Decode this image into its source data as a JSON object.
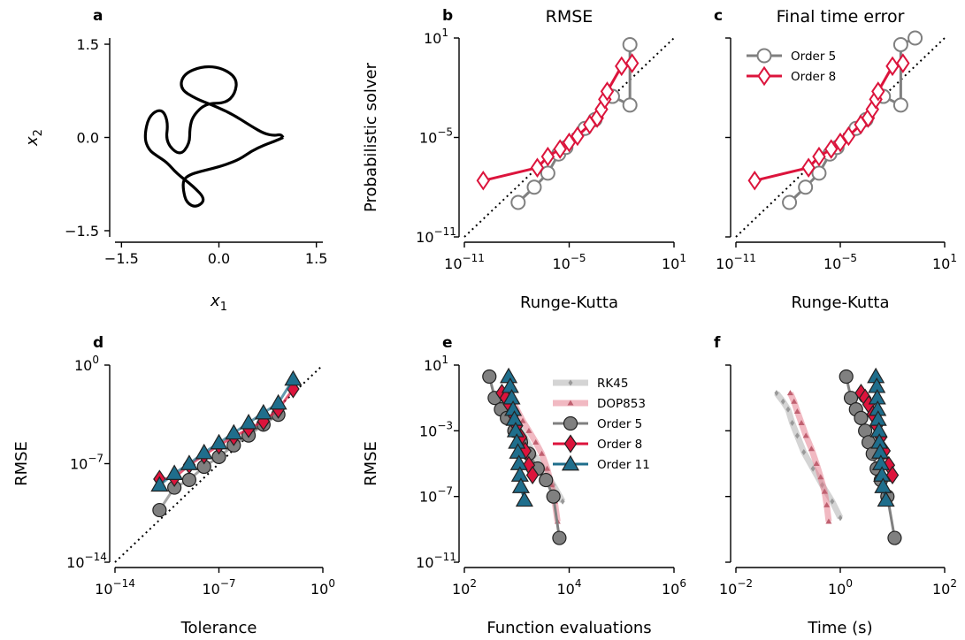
{
  "colors": {
    "order5": "#808080",
    "order8": "#dc143c",
    "order11": "#1f6e8c",
    "rk45": "#b0b0b0",
    "dop853": "#e6808f",
    "curve": "#000000"
  },
  "chart_data": [
    {
      "panel": "a",
      "type": "line",
      "title": "",
      "xlabel": "x1",
      "ylabel": "x2",
      "xlim": [
        -1.6,
        1.6
      ],
      "ylim": [
        -1.6,
        1.6
      ],
      "xticks": [
        "−1.5",
        "0.0",
        "1.5"
      ],
      "yticks": [
        "−1.5",
        "0.0",
        "1.5"
      ],
      "series": [
        {
          "name": "",
          "kind": "three-body orbit",
          "points": [
            [
              0.99,
              0
            ],
            [
              0.86,
              -0.06
            ],
            [
              0.7,
              -0.12
            ],
            [
              0.5,
              -0.22
            ],
            [
              0.32,
              -0.35
            ],
            [
              0.1,
              -0.44
            ],
            [
              -0.1,
              -0.5
            ],
            [
              -0.3,
              -0.55
            ],
            [
              -0.45,
              -0.6
            ],
            [
              -0.55,
              -0.68
            ],
            [
              -0.55,
              -0.85
            ],
            [
              -0.5,
              -1.05
            ],
            [
              -0.35,
              -1.13
            ],
            [
              -0.2,
              -1.0
            ],
            [
              -0.4,
              -0.78
            ],
            [
              -0.65,
              -0.58
            ],
            [
              -0.8,
              -0.4
            ],
            [
              -0.95,
              -0.3
            ],
            [
              -1.08,
              -0.2
            ],
            [
              -1.15,
              0
            ],
            [
              -1.08,
              0.35
            ],
            [
              -0.88,
              0.47
            ],
            [
              -0.78,
              0.25
            ],
            [
              -0.82,
              -0.08
            ],
            [
              -0.6,
              -0.3
            ],
            [
              -0.45,
              -0.1
            ],
            [
              -0.45,
              0.15
            ],
            [
              -0.4,
              0.35
            ],
            [
              -0.2,
              0.55
            ],
            [
              0.1,
              0.55
            ],
            [
              0.25,
              0.7
            ],
            [
              0.28,
              0.95
            ],
            [
              0.05,
              1.12
            ],
            [
              -0.25,
              1.15
            ],
            [
              -0.55,
              1.02
            ],
            [
              -0.6,
              0.78
            ],
            [
              -0.35,
              0.62
            ],
            [
              -0.1,
              0.52
            ],
            [
              0.2,
              0.38
            ],
            [
              0.5,
              0.18
            ],
            [
              0.7,
              0.06
            ],
            [
              0.85,
              0.03
            ],
            [
              0.95,
              0.05
            ],
            [
              0.99,
              0
            ]
          ]
        }
      ]
    },
    {
      "panel": "b",
      "type": "scatter",
      "title": "RMSE",
      "xlabel": "Runge-Kutta",
      "ylabel": "Probabilistic solver",
      "xscale": "log",
      "yscale": "log",
      "xlim_exp": [
        -11,
        1
      ],
      "ylim_exp": [
        -11,
        1
      ],
      "xticks": [
        "-11",
        "-5",
        "1"
      ],
      "yticks": [
        "-11",
        "-5",
        "1"
      ],
      "diagonal": true,
      "legend": "none",
      "series": [
        {
          "name": "Order 5",
          "marker": "circle",
          "x": [
            1.2e-08,
            1e-07,
            6e-07,
            2.5e-06,
            6.5e-06,
            8e-05,
            0.0003,
            0.003,
            0.03,
            0.03
          ],
          "y": [
            1.2e-09,
            1e-08,
            7e-08,
            1e-06,
            2.5e-06,
            3.5e-05,
            0.00012,
            0.003,
            0.0009,
            4.0
          ]
        },
        {
          "name": "Order 8",
          "marker": "diamond",
          "x": [
            1.2e-10,
            1.5e-07,
            6e-07,
            3e-06,
            1e-05,
            3e-05,
            0.00015,
            0.0004,
            0.0007,
            0.0011,
            0.0015,
            0.01,
            0.04
          ],
          "y": [
            2.5e-08,
            1.5e-07,
            7e-07,
            2e-06,
            5e-06,
            1.2e-05,
            6e-05,
            0.00015,
            0.0005,
            0.002,
            0.006,
            0.2,
            0.3
          ]
        }
      ]
    },
    {
      "panel": "c",
      "type": "scatter",
      "title": "Final time error",
      "xlabel": "Runge-Kutta",
      "ylabel": "",
      "xscale": "log",
      "yscale": "log",
      "xlim_exp": [
        -11,
        1
      ],
      "ylim_exp": [
        -11,
        1
      ],
      "xticks": [
        "-11",
        "-5",
        "1"
      ],
      "yticks": [],
      "diagonal": true,
      "legend": "top-left",
      "series": [
        {
          "name": "Order 5",
          "marker": "circle",
          "x": [
            1.2e-08,
            1e-07,
            6e-07,
            2.5e-06,
            6.5e-06,
            8e-05,
            0.0003,
            0.003,
            0.03,
            0.03,
            0.2
          ],
          "y": [
            1.2e-09,
            1e-08,
            7e-08,
            1e-06,
            2.5e-06,
            3.5e-05,
            0.00012,
            0.003,
            0.0009,
            4.0,
            10.0
          ]
        },
        {
          "name": "Order 8",
          "marker": "diamond",
          "x": [
            1.2e-10,
            1.5e-07,
            6e-07,
            3e-06,
            1e-05,
            3e-05,
            0.00015,
            0.0004,
            0.0007,
            0.0011,
            0.0015,
            0.01,
            0.04
          ],
          "y": [
            2.5e-08,
            1.5e-07,
            7e-07,
            2e-06,
            5e-06,
            1.2e-05,
            6e-05,
            0.00015,
            0.0005,
            0.002,
            0.006,
            0.2,
            0.3
          ]
        }
      ]
    },
    {
      "panel": "d",
      "type": "line",
      "title": "",
      "xlabel": "Tolerance",
      "ylabel": "RMSE",
      "xscale": "log",
      "yscale": "log",
      "xlim_exp": [
        -14,
        0
      ],
      "ylim_exp": [
        -14,
        0
      ],
      "xticks": [
        "-14",
        "-7",
        "0"
      ],
      "yticks": [
        "-14",
        "-7",
        "0"
      ],
      "diagonal": true,
      "legend": "none",
      "series": [
        {
          "name": "Order 5",
          "marker": "circle",
          "x": [
            1e-11,
            1e-10,
            1e-09,
            1e-08,
            1e-07,
            1e-06,
            1e-05,
            0.0001,
            0.001
          ],
          "y": [
            5e-11,
            2e-09,
            7e-09,
            6e-08,
            3e-07,
            2e-06,
            1e-05,
            6e-05,
            0.0003
          ]
        },
        {
          "name": "Order 8",
          "marker": "diamond",
          "x": [
            1e-11,
            1e-10,
            1e-09,
            1e-08,
            1e-07,
            1e-06,
            1e-05,
            0.0001,
            0.001,
            0.01
          ],
          "y": [
            8e-09,
            1e-08,
            8e-08,
            4e-07,
            2e-06,
            8e-06,
            3e-05,
            0.0001,
            0.0007,
            0.02
          ]
        },
        {
          "name": "Order 11",
          "marker": "triangle",
          "x": [
            1e-11,
            1e-10,
            1e-09,
            1e-08,
            1e-07,
            1e-06,
            1e-05,
            0.0001,
            0.001,
            0.01
          ],
          "y": [
            3e-09,
            2e-08,
            1e-07,
            6e-07,
            3e-06,
            1.5e-05,
            8e-05,
            0.0004,
            0.002,
            0.1
          ]
        }
      ]
    },
    {
      "panel": "e",
      "type": "line",
      "title": "",
      "xlabel": "Function evaluations",
      "ylabel": "RMSE",
      "xscale": "log",
      "yscale": "log",
      "xlim_exp": [
        2,
        6
      ],
      "ylim_exp": [
        -11,
        1
      ],
      "xticks": [
        "2",
        "4",
        "6"
      ],
      "yticks": [
        "-11",
        "-7",
        "-3",
        "1"
      ],
      "diagonal": false,
      "legend": "top-right",
      "series": [
        {
          "name": "RK45",
          "marker": "small-diamond",
          "x": [
            450,
            600,
            800,
            1100,
            1500,
            2200,
            3200,
            5000,
            7500
          ],
          "y": [
            0.2,
            0.06,
            0.02,
            0.002,
            0.0003,
            3e-05,
            5e-06,
            5e-07,
            5e-08
          ]
        },
        {
          "name": "DOP853",
          "marker": "small-triangle",
          "x": [
            700,
            850,
            1000,
            1300,
            1700,
            2300,
            3000,
            3800,
            4600,
            5300,
            6000
          ],
          "y": [
            0.2,
            0.06,
            0.02,
            0.004,
            0.001,
            0.0002,
            4e-05,
            5e-06,
            5e-07,
            5e-08,
            3e-09
          ]
        },
        {
          "name": "Order 5",
          "marker": "circle",
          "x": [
            300,
            380,
            500,
            650,
            900,
            1200,
            1700,
            2500,
            3600,
            5000,
            6500
          ],
          "y": [
            2.0,
            0.1,
            0.02,
            0.006,
            0.001,
            0.0002,
            4e-05,
            5e-06,
            1e-06,
            1e-07,
            3e-10
          ]
        },
        {
          "name": "Order 8",
          "marker": "diamond",
          "x": [
            520,
            620,
            720,
            850,
            1000,
            1200,
            1450,
            1700,
            2000
          ],
          "y": [
            0.2,
            0.1,
            0.04,
            0.01,
            0.002,
            0.0004,
            6e-05,
            8e-06,
            2e-06
          ]
        },
        {
          "name": "Order 11",
          "marker": "triangle",
          "x": [
            700,
            750,
            800,
            850,
            900,
            950,
            1000,
            1050,
            1100,
            1150,
            1200,
            1400
          ],
          "y": [
            2.0,
            0.5,
            0.1,
            0.02,
            0.005,
            0.001,
            0.0002,
            5e-05,
            1e-05,
            2e-06,
            4e-07,
            6e-08
          ]
        }
      ]
    },
    {
      "panel": "f",
      "type": "line",
      "title": "",
      "xlabel": "Time (s)",
      "ylabel": "",
      "xscale": "log",
      "yscale": "log",
      "xlim_exp": [
        -2,
        2
      ],
      "ylim_exp": [
        -11,
        1
      ],
      "xticks": [
        "-2",
        "0",
        "2"
      ],
      "yticks": [],
      "diagonal": false,
      "legend": "none",
      "series": [
        {
          "name": "RK45",
          "marker": "small-diamond",
          "x": [
            0.06,
            0.08,
            0.1,
            0.12,
            0.15,
            0.2,
            0.3,
            0.45,
            0.7,
            1.0
          ],
          "y": [
            0.2,
            0.06,
            0.02,
            0.003,
            0.0005,
            5e-05,
            5e-06,
            5e-07,
            5e-08,
            5e-09
          ]
        },
        {
          "name": "DOP853",
          "marker": "small-triangle",
          "x": [
            0.11,
            0.13,
            0.15,
            0.18,
            0.22,
            0.28,
            0.35,
            0.42,
            0.5,
            0.55,
            0.6
          ],
          "y": [
            0.2,
            0.06,
            0.015,
            0.003,
            0.0005,
            8e-05,
            1e-05,
            1.5e-06,
            2e-07,
            3e-08,
            3e-09
          ]
        },
        {
          "name": "Order 5",
          "marker": "circle",
          "x": [
            1.3,
            1.6,
            2.0,
            2.5,
            3.0,
            3.5,
            4.2,
            5.0,
            6.0,
            8.0,
            11.0
          ],
          "y": [
            2.0,
            0.1,
            0.02,
            0.006,
            0.001,
            0.0002,
            4e-05,
            5e-06,
            1e-06,
            1e-07,
            3e-10
          ]
        },
        {
          "name": "Order 8",
          "marker": "diamond",
          "x": [
            2.5,
            3.0,
            3.5,
            4.2,
            5.0,
            6.0,
            7.0,
            8.5,
            10.0
          ],
          "y": [
            0.2,
            0.1,
            0.04,
            0.01,
            0.002,
            0.0004,
            6e-05,
            8e-06,
            2e-06
          ]
        },
        {
          "name": "Order 11",
          "marker": "triangle",
          "x": [
            4.8,
            5.0,
            5.1,
            5.2,
            5.3,
            5.5,
            5.6,
            5.8,
            6.0,
            6.3,
            6.6,
            7.5
          ],
          "y": [
            2.0,
            0.5,
            0.1,
            0.02,
            0.005,
            0.001,
            0.0002,
            5e-05,
            1e-05,
            2e-06,
            4e-07,
            6e-08
          ]
        }
      ]
    }
  ]
}
